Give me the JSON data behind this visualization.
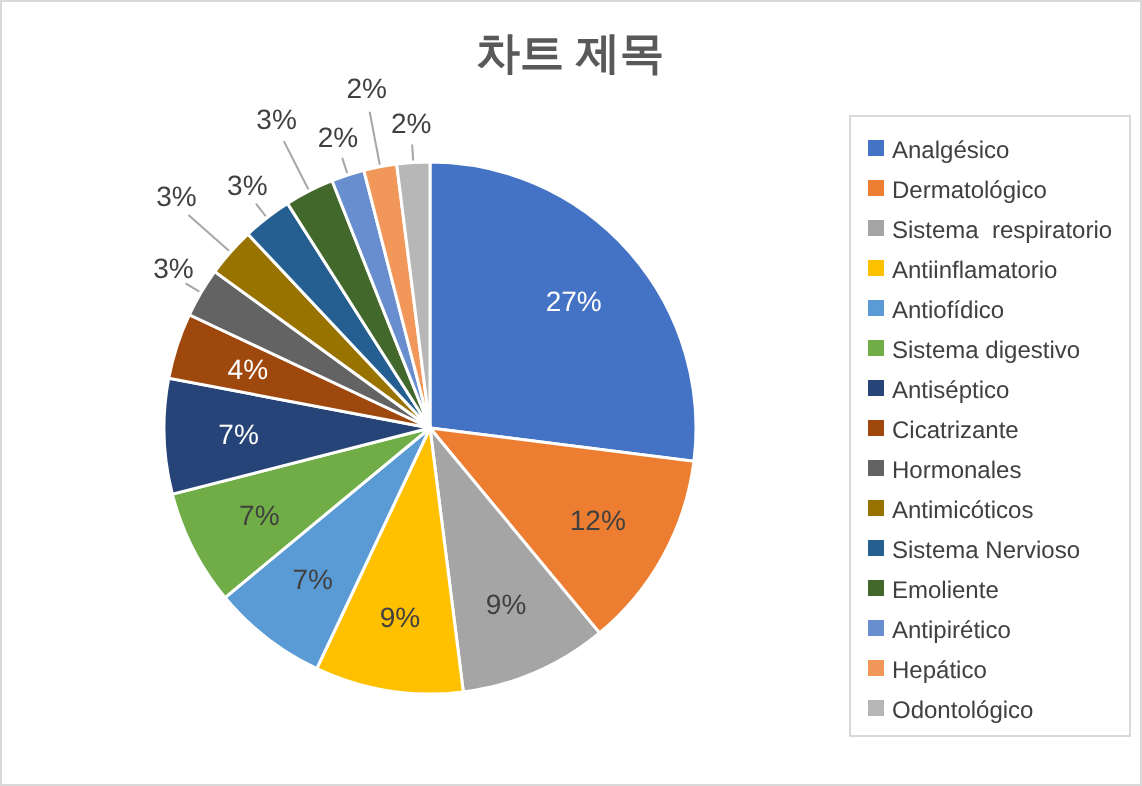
{
  "chart_data": {
    "type": "pie",
    "title": "차트 제목",
    "categories": [
      "Analgésico",
      "Dermatológico",
      "Sistema  respiratorio",
      "Antiinflamatorio",
      "Antiofídico",
      "Sistema digestivo",
      "Antiséptico",
      "Cicatrizante",
      "Hormonales",
      "Antimicóticos",
      "Sistema Nervioso",
      "Emoliente",
      "Antipirético",
      "Hepático",
      "Odontológico"
    ],
    "values": [
      27,
      12,
      9,
      9,
      7,
      7,
      7,
      4,
      3,
      3,
      3,
      3,
      2,
      2,
      2
    ],
    "colors": [
      "#4472c4",
      "#ed7d31",
      "#a5a5a5",
      "#ffc000",
      "#5b9bd5",
      "#70ad47",
      "#264478",
      "#9e480e",
      "#636363",
      "#997300",
      "#255e91",
      "#43682b",
      "#698ed0",
      "#f1975a",
      "#b7b7b7"
    ],
    "value_labels": [
      "27%",
      "12%",
      "9%",
      "9%",
      "7%",
      "7%",
      "7%",
      "4%",
      "3%",
      "3%",
      "3%",
      "3%",
      "2%",
      "2%",
      "2%"
    ],
    "legend": "right"
  }
}
